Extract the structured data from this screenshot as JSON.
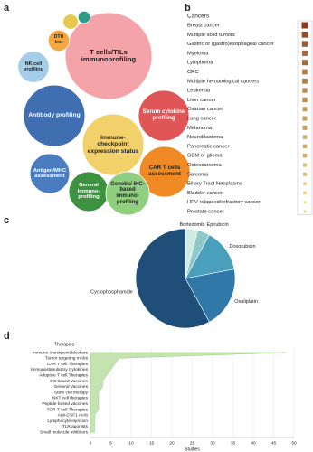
{
  "chart_data": [
    {
      "type": "bubble",
      "label": "a",
      "categories": [
        "T cells/TILs immunoprofiling",
        "Antibody profiling",
        "Immune-checkpoint expression status",
        "Serum cytokine profiling",
        "CAR T cells assessment",
        "Antigen/MHC assessment",
        "General Immuno-profiling",
        "Genetic/ IHC-based immuno-profiling",
        "NK cell profiling",
        "DTH test",
        null,
        null
      ],
      "values": [
        100,
        50,
        50,
        34,
        34,
        21,
        21,
        25,
        13,
        6,
        3,
        2
      ],
      "colors": [
        "#f4a3a8",
        "#3f6fb0",
        "#f2d16b",
        "#e05555",
        "#f08a24",
        "#4a7cc0",
        "#3d9140",
        "#8fcf7f",
        "#a5cde8",
        "#f5a742",
        "#e8c84a",
        "#2e9a8a"
      ]
    },
    {
      "type": "marker_list",
      "label": "b",
      "title": "Cancers",
      "categories": [
        "Breast cancer",
        "Multiple solid tumors",
        "Gastric or (gastro)esophageal cancer",
        "Myeloma",
        "Lymphoma",
        "CRC",
        "Multiple hematological cancers",
        "Leukemia",
        "Liver cancer",
        "Ovarian cancer",
        "Lung cancer",
        "Melanoma",
        "Neuroblastoma",
        "Pancreatic cancer",
        "GBM or glioma",
        "Osteosarcoma",
        "Sarcoma",
        "Biliary Tract Neoplasms",
        "Bladder cancer",
        "HPV relapsed/refractory cancer",
        "Prostate cancer"
      ],
      "values": [
        12,
        11,
        10,
        9,
        9,
        8,
        8,
        7,
        7,
        6,
        6,
        6,
        5,
        5,
        5,
        4,
        4,
        3,
        3,
        2,
        2
      ],
      "color_range": [
        "#8b3a1e",
        "#f0dc82"
      ]
    },
    {
      "type": "pie",
      "label": "c",
      "categories": [
        "Bortezomib",
        "Epirubicin",
        "Doxorubicin",
        "Oxaliplatin",
        "Cyclophosphamide"
      ],
      "values": [
        4,
        4,
        14,
        20,
        58
      ],
      "colors": [
        "#cfeadf",
        "#8ec8c8",
        "#4a9fbd",
        "#2f78a8",
        "#1f4e79"
      ]
    },
    {
      "type": "area",
      "label": "d",
      "ylabel": "Therapies",
      "xlabel": "Studies",
      "categories": [
        "Immune-checkpoint blockers",
        "Tumor targeting mAbs",
        "CAR T cell Therapies",
        "Immunostimulatory Cytokines",
        "Adoptive T cell Therapies",
        "DC based Vaccines",
        "General Vaccines",
        "Stem cell therapy",
        "NKT cell therapies",
        "Peptide based vaccines",
        "TCR-T cell Therapies",
        "Anti-CSF1 mAb",
        "Lymphocyte injection",
        "TLR agonists",
        "Small molecule inhibitors"
      ],
      "values": [
        48,
        7,
        6,
        5,
        4,
        3,
        3,
        2,
        2,
        2,
        2,
        1,
        1,
        1,
        1
      ],
      "color": "#c5e3b0",
      "xlim": [
        0,
        50
      ],
      "xticks": [
        0,
        5,
        10,
        15,
        20,
        25,
        30,
        35,
        40,
        45,
        50
      ],
      "grid": true
    }
  ]
}
